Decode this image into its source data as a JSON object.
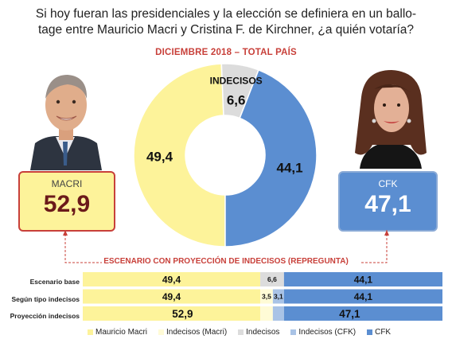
{
  "title": {
    "line1": "Si hoy fueran las presidenciales y la elección se definiera en un ballo-",
    "line2": "tage entre Mauricio Macri y Cristina F. de Kirchner, ¿a quién votaría?"
  },
  "subtitle": "DICIEMBRE 2018 – TOTAL PAÍS",
  "candidates": {
    "macri": {
      "name": "MACRI",
      "value": "52,9",
      "color": "#fdf39a"
    },
    "cfk": {
      "name": "CFK",
      "value": "47,1",
      "color": "#5b8ed1"
    }
  },
  "scenario_label": "ESCENARIO CON PROYECCIÓN DE INDECISOS (REPREGUNTA)",
  "chart_data": [
    {
      "type": "pie",
      "subtype": "donut",
      "categories": [
        "Mauricio Macri",
        "Indecisos",
        "CFK"
      ],
      "values": [
        49.4,
        6.6,
        44.1
      ],
      "labels": [
        "49,4",
        "6,6",
        "44,1"
      ],
      "annotations": [
        "INDECISOS"
      ],
      "colors": [
        "#fdf39a",
        "#dcdcdc",
        "#5b8ed1"
      ]
    },
    {
      "type": "bar",
      "orientation": "horizontal",
      "stacked": true,
      "categories": [
        "Escenario base",
        "Según tipo indecisos",
        "Proyección indecisos"
      ],
      "series": [
        {
          "name": "Mauricio Macri",
          "color": "#fdf39a",
          "values": [
            49.4,
            49.4,
            49.4
          ],
          "labels": [
            "49,4",
            "49,4",
            ""
          ]
        },
        {
          "name": "Indecisos (Macri)",
          "color": "#fdf39a",
          "values": [
            0,
            3.5,
            3.5
          ],
          "labels": [
            "",
            "3,5",
            ""
          ]
        },
        {
          "name": "Indecisos",
          "color": "#dcdcdc",
          "values": [
            6.6,
            0,
            0
          ],
          "labels": [
            "6,6",
            "",
            ""
          ]
        },
        {
          "name": "Indecisos (CFK)",
          "color": "#5b8ed1",
          "values": [
            0,
            3.1,
            3.1
          ],
          "labels": [
            "",
            "3,1",
            ""
          ]
        },
        {
          "name": "CFK",
          "color": "#5b8ed1",
          "values": [
            44.1,
            44.1,
            44.1
          ],
          "labels": [
            "44,1",
            "44,1",
            ""
          ]
        }
      ],
      "totals": {
        "macri": "52,9",
        "cfk": "47,1"
      },
      "legend": [
        "Mauricio Macri",
        "Indecisos (Macri)",
        "Indecisos",
        "Indecisos (CFK)",
        "CFK"
      ]
    }
  ]
}
